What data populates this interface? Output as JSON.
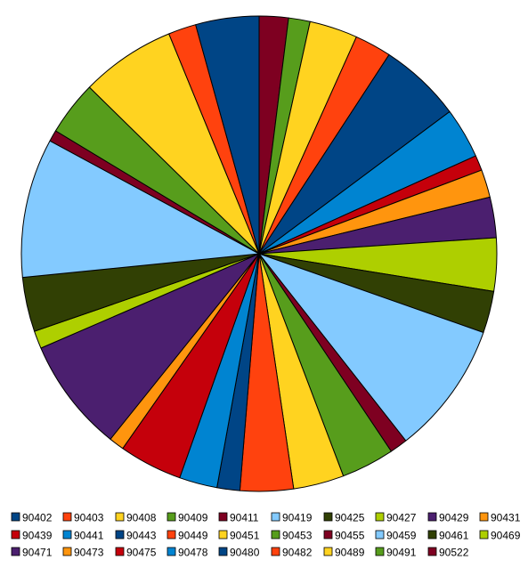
{
  "chart_data": {
    "type": "pie",
    "title": "",
    "legend_position": "bottom",
    "categories": [
      "90402",
      "90403",
      "90408",
      "90409",
      "90411",
      "90419",
      "90425",
      "90427",
      "90429",
      "90431",
      "90439",
      "90441",
      "90443",
      "90449",
      "90451",
      "90453",
      "90455",
      "90459",
      "90461",
      "90469",
      "90471",
      "90473",
      "90475",
      "90478",
      "90480",
      "90482",
      "90489",
      "90491",
      "90522"
    ],
    "values": [
      5.0,
      2.2,
      7.5,
      4.3,
      0.9,
      11.0,
      4.3,
      1.4,
      9.0,
      1.2,
      5.0,
      3.0,
      1.8,
      4.2,
      4.0,
      4.2,
      1.4,
      10.5,
      3.3,
      4.2,
      3.2,
      2.2,
      1.2,
      4.0,
      6.5,
      2.9,
      3.8,
      1.7,
      2.3
    ],
    "colors": [
      "#004586",
      "#ff420e",
      "#ffd320",
      "#579d1c",
      "#7e0021",
      "#83caff",
      "#314004",
      "#aecf00",
      "#4b1f6f",
      "#ff950e",
      "#c5000b",
      "#0084d1",
      "#004586",
      "#ff420e",
      "#ffd320",
      "#579d1c",
      "#7e0021",
      "#83caff",
      "#314004",
      "#aecf00",
      "#4b1f6f",
      "#ff950e",
      "#c5000b",
      "#0084d1",
      "#004586",
      "#ff420e",
      "#ffd320",
      "#579d1c",
      "#7e0021"
    ],
    "slice_order": [
      "90522",
      "90491",
      "90489",
      "90482",
      "90480",
      "90478",
      "90475",
      "90473",
      "90471",
      "90469",
      "90461",
      "90459",
      "90455",
      "90453",
      "90451",
      "90449",
      "90443",
      "90441",
      "90439",
      "90431",
      "90429",
      "90427",
      "90425",
      "90419",
      "90411",
      "90409",
      "90408",
      "90403",
      "90402"
    ],
    "legend_rows": [
      [
        "90402",
        "90403",
        "90408",
        "90409",
        "90411",
        "90419",
        "90425",
        "90427",
        "90429",
        "90431"
      ],
      [
        "90439",
        "90441",
        "90443",
        "90449",
        "90451",
        "90453",
        "90455",
        "90459",
        "90461",
        "90469"
      ],
      [
        "90471",
        "90473",
        "90475",
        "90478",
        "90480",
        "90482",
        "90489",
        "90491",
        "90522"
      ]
    ]
  }
}
